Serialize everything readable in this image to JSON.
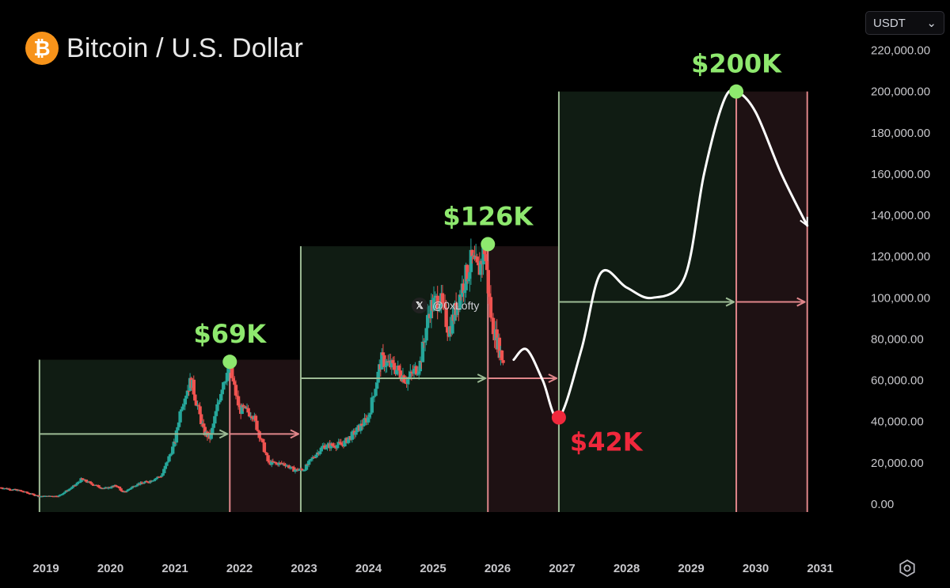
{
  "header": {
    "title": "Bitcoin / U.S. Dollar",
    "logo_glyph": "₿",
    "currency": "USDT",
    "watermark": "@0xLofty",
    "watermark_icon": "x-icon"
  },
  "colors": {
    "background": "#000000",
    "up": "#26a69a",
    "down": "#ef5350",
    "peak": "#8ee86e",
    "bottom": "#f0283c",
    "accumulation_zone": "#101c13",
    "distribution_zone": "#1e1113",
    "zone_line_green": "#9dbb95",
    "zone_line_red": "#e0868a"
  },
  "chart_data": {
    "type": "candlestick",
    "title": "Bitcoin / U.S. Dollar",
    "y_axis": {
      "position": "right",
      "range": [
        0,
        220000
      ],
      "ticks": [
        "0.00",
        "20,000.00",
        "40,000.00",
        "60,000.00",
        "80,000.00",
        "100,000.00",
        "120,000.00",
        "140,000.00",
        "160,000.00",
        "180,000.00",
        "200,000.00",
        "220,000.00"
      ],
      "tick_values": [
        0,
        20000,
        40000,
        60000,
        80000,
        100000,
        120000,
        140000,
        160000,
        180000,
        200000,
        220000
      ]
    },
    "x_axis": {
      "ticks": [
        "2019",
        "2020",
        "2021",
        "2022",
        "2023",
        "2024",
        "2025",
        "2026",
        "2027",
        "2028",
        "2029",
        "2030",
        "2031"
      ],
      "tick_values": [
        2019,
        2020,
        2021,
        2022,
        2023,
        2024,
        2025,
        2026,
        2027,
        2028,
        2029,
        2030,
        2031
      ]
    },
    "price_path": [
      [
        2018.3,
        8000
      ],
      [
        2018.6,
        6500
      ],
      [
        2018.9,
        3800
      ],
      [
        2019.2,
        4000
      ],
      [
        2019.45,
        9000
      ],
      [
        2019.55,
        12000
      ],
      [
        2019.7,
        10000
      ],
      [
        2019.9,
        7500
      ],
      [
        2020.1,
        9000
      ],
      [
        2020.2,
        5500
      ],
      [
        2020.4,
        9500
      ],
      [
        2020.6,
        11000
      ],
      [
        2020.8,
        14000
      ],
      [
        2021.0,
        30000
      ],
      [
        2021.1,
        48000
      ],
      [
        2021.25,
        60000
      ],
      [
        2021.45,
        35000
      ],
      [
        2021.55,
        32000
      ],
      [
        2021.75,
        60000
      ],
      [
        2021.85,
        66000
      ],
      [
        2022.0,
        46000
      ],
      [
        2022.2,
        44000
      ],
      [
        2022.35,
        30000
      ],
      [
        2022.45,
        20000
      ],
      [
        2022.7,
        19500
      ],
      [
        2022.85,
        16500
      ],
      [
        2023.0,
        16800
      ],
      [
        2023.15,
        23000
      ],
      [
        2023.3,
        28000
      ],
      [
        2023.6,
        29000
      ],
      [
        2023.8,
        35000
      ],
      [
        2024.0,
        42000
      ],
      [
        2024.2,
        70000
      ],
      [
        2024.45,
        65000
      ],
      [
        2024.6,
        60000
      ],
      [
        2024.8,
        68000
      ],
      [
        2024.95,
        95000
      ],
      [
        2025.1,
        100000
      ],
      [
        2025.25,
        84000
      ],
      [
        2025.45,
        105000
      ],
      [
        2025.6,
        118000
      ],
      [
        2025.7,
        112000
      ],
      [
        2025.8,
        124000
      ],
      [
        2025.9,
        90000
      ],
      [
        2026.0,
        78000
      ],
      [
        2026.1,
        68000
      ]
    ],
    "cycles": [
      {
        "zone": "accumulation",
        "start": 2018.9,
        "end": 2021.85,
        "top": 70000
      },
      {
        "zone": "distribution",
        "start": 2021.85,
        "end": 2022.95,
        "top": 70000
      },
      {
        "zone": "accumulation",
        "start": 2022.95,
        "end": 2025.85,
        "top": 125000
      },
      {
        "zone": "distribution",
        "start": 2025.85,
        "end": 2026.95,
        "top": 125000
      },
      {
        "zone": "accumulation",
        "start": 2026.95,
        "end": 2029.7,
        "top": 200000
      },
      {
        "zone": "distribution",
        "start": 2029.7,
        "end": 2030.8,
        "top": 200000
      }
    ],
    "cycle_arrows": [
      {
        "color": "green",
        "from": 2018.9,
        "to": 2021.85,
        "value": 34000
      },
      {
        "color": "red",
        "from": 2021.85,
        "to": 2022.95,
        "value": 34000
      },
      {
        "color": "green",
        "from": 2022.95,
        "to": 2025.85,
        "value": 61000
      },
      {
        "color": "red",
        "from": 2025.85,
        "to": 2026.95,
        "value": 61000
      },
      {
        "color": "green",
        "from": 2026.95,
        "to": 2029.7,
        "value": 98000
      },
      {
        "color": "red",
        "from": 2029.7,
        "to": 2030.8,
        "value": 98000
      }
    ],
    "annotations": [
      {
        "label": "$69K",
        "x": 2021.85,
        "value": 69000,
        "type": "peak"
      },
      {
        "label": "$126K",
        "x": 2025.85,
        "value": 126000,
        "type": "peak"
      },
      {
        "label": "$42K",
        "x": 2026.95,
        "value": 42000,
        "type": "bottom"
      },
      {
        "label": "$200K",
        "x": 2029.7,
        "value": 200000,
        "type": "peak"
      }
    ],
    "projection": [
      [
        2026.25,
        70000
      ],
      [
        2026.45,
        75000
      ],
      [
        2026.7,
        60000
      ],
      [
        2026.95,
        42000
      ],
      [
        2027.3,
        75000
      ],
      [
        2027.6,
        112000
      ],
      [
        2028.0,
        105000
      ],
      [
        2028.4,
        100000
      ],
      [
        2028.9,
        110000
      ],
      [
        2029.2,
        160000
      ],
      [
        2029.5,
        195000
      ],
      [
        2029.7,
        200000
      ],
      [
        2030.0,
        190000
      ],
      [
        2030.4,
        160000
      ],
      [
        2030.8,
        135000
      ]
    ]
  }
}
